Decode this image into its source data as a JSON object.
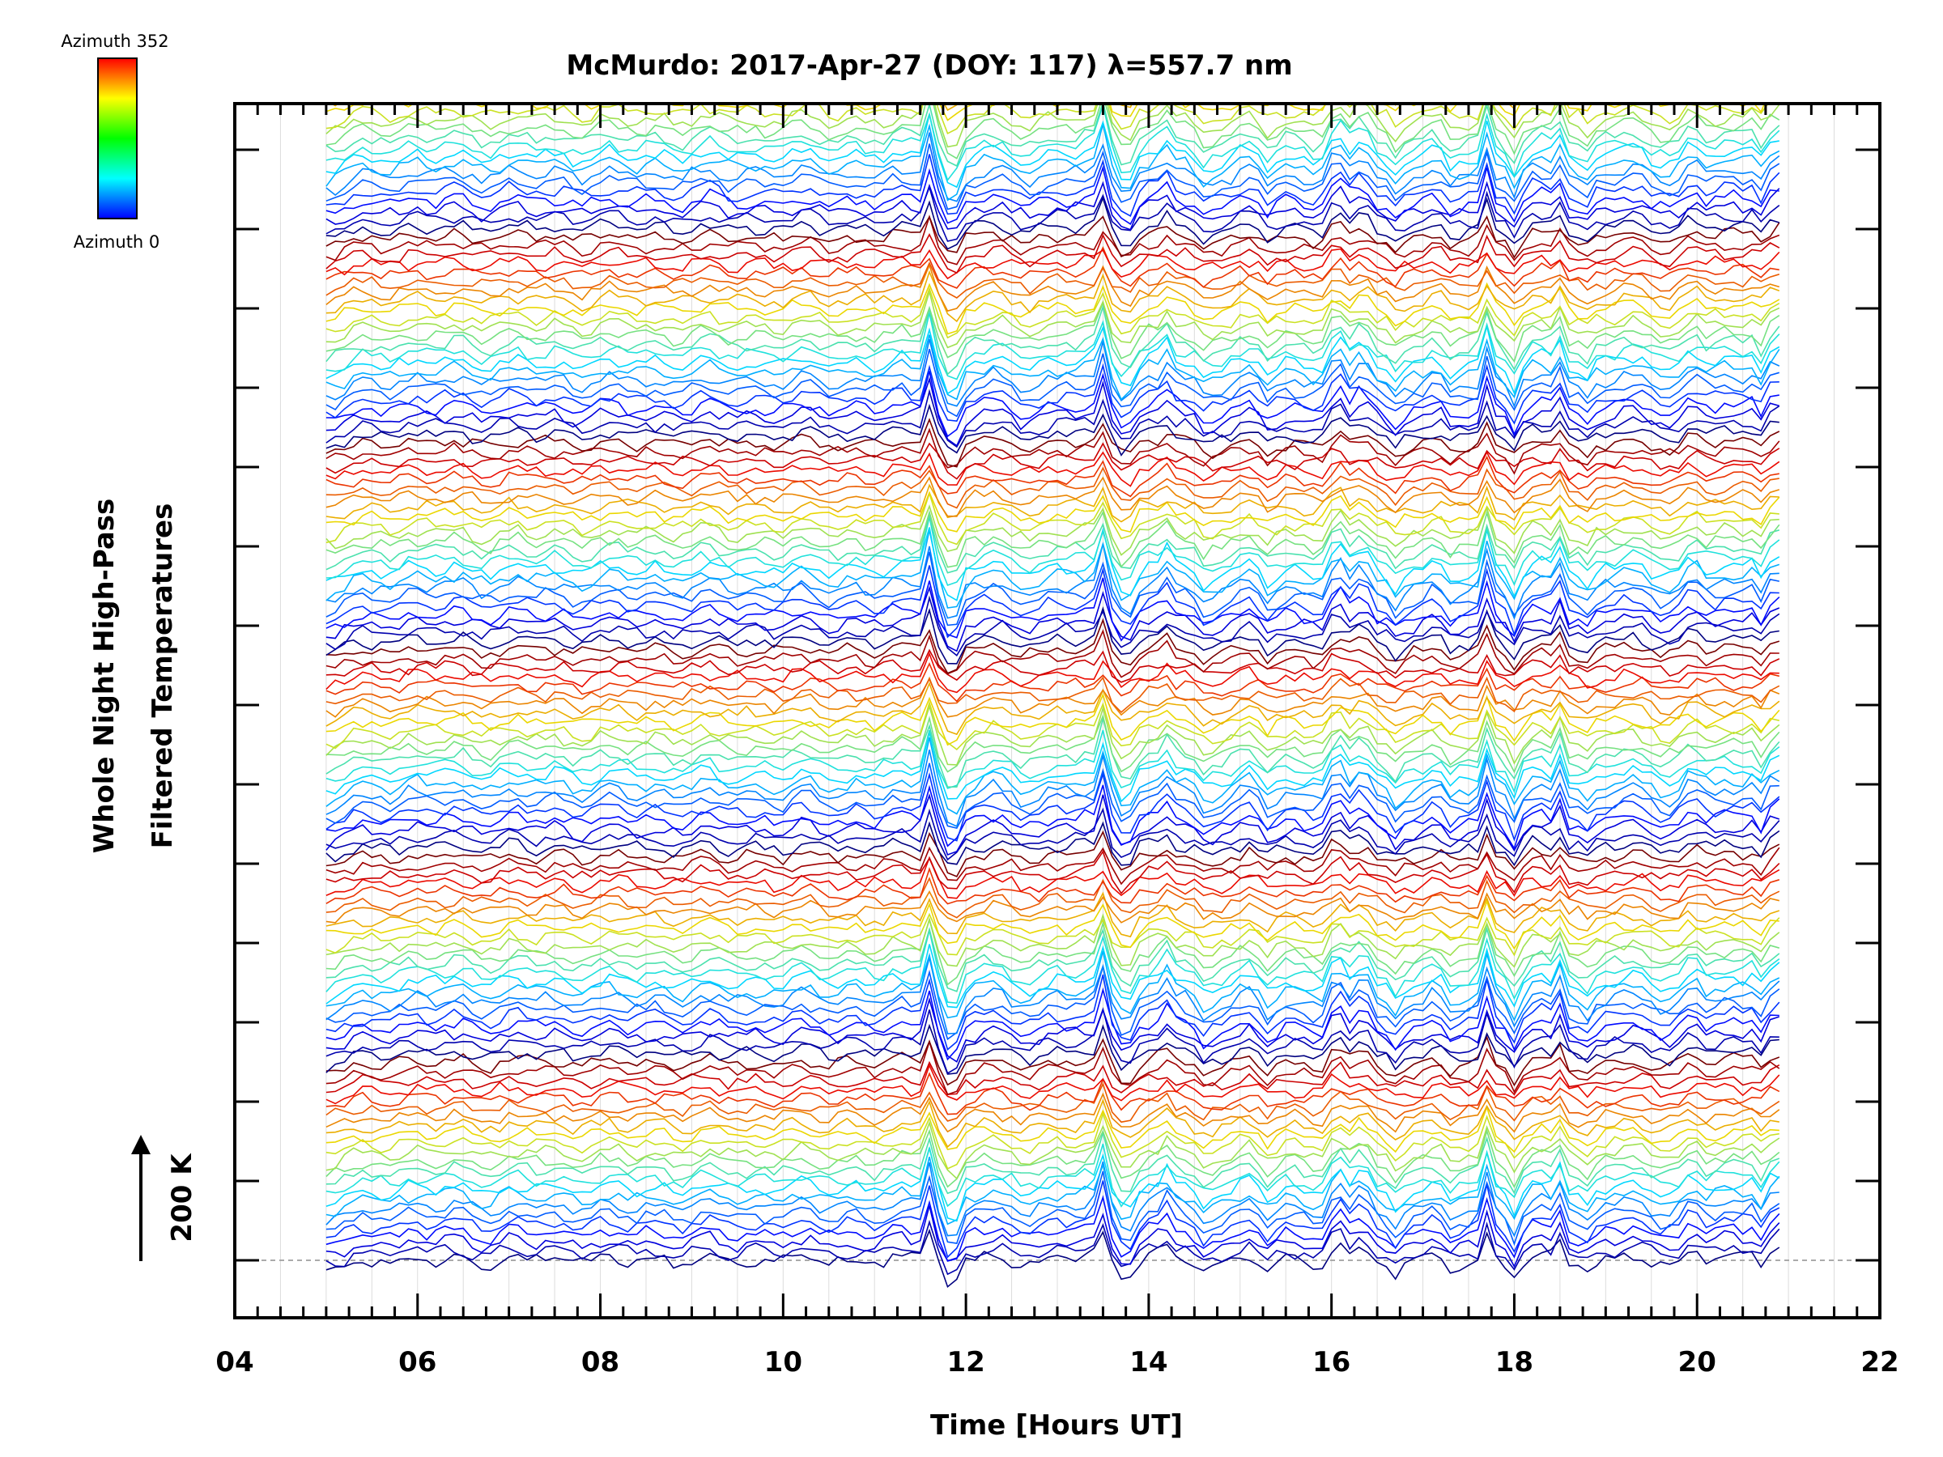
{
  "chart_data": {
    "type": "line",
    "title": "McMurdo: 2017-Apr-27 (DOY: 117) λ=557.7 nm",
    "xlabel": "Time [Hours UT]",
    "ylabel_line1": "Whole Night High-Pass",
    "ylabel_line2": "Filtered Temperatures",
    "scale_bar_label": "200 K",
    "xlim": [
      4,
      22
    ],
    "x_ticks": [
      "04",
      "06",
      "08",
      "10",
      "12",
      "14",
      "16",
      "18",
      "20",
      "22"
    ],
    "x_minor_step": 0.5,
    "data_range_hours": [
      5.0,
      20.9
    ],
    "sample_interval_hours": 0.1,
    "n_traces": 140,
    "azimuth_steps_per_cycle": 23,
    "trace_spacing_K": 14.3,
    "colorbar": {
      "top_label": "Azimuth 352",
      "bottom_label": "Azimuth 0",
      "azimuth_range": [
        0,
        352
      ],
      "colors": [
        "#0000ff",
        "#00ffff",
        "#00ff00",
        "#ffff00",
        "#ff0000"
      ]
    },
    "grid": true,
    "events": [
      {
        "t": 11.6,
        "amp": 70,
        "w": 0.07
      },
      {
        "t": 11.85,
        "amp": -55,
        "w": 0.1
      },
      {
        "t": 13.5,
        "amp": 55,
        "w": 0.06
      },
      {
        "t": 13.75,
        "amp": -30,
        "w": 0.08
      },
      {
        "t": 14.2,
        "amp": 25,
        "w": 0.08
      },
      {
        "t": 14.6,
        "amp": -20,
        "w": 0.1
      },
      {
        "t": 15.3,
        "amp": -22,
        "w": 0.1
      },
      {
        "t": 16.05,
        "amp": 40,
        "w": 0.07
      },
      {
        "t": 16.35,
        "amp": 35,
        "w": 0.07
      },
      {
        "t": 16.7,
        "amp": -25,
        "w": 0.09
      },
      {
        "t": 17.3,
        "amp": -25,
        "w": 0.1
      },
      {
        "t": 17.7,
        "amp": 55,
        "w": 0.06
      },
      {
        "t": 18.0,
        "amp": -35,
        "w": 0.08
      },
      {
        "t": 18.5,
        "amp": 40,
        "w": 0.06
      },
      {
        "t": 18.8,
        "amp": -20,
        "w": 0.08
      },
      {
        "t": 19.95,
        "amp": 22,
        "w": 0.06
      },
      {
        "t": 20.6,
        "amp": 18,
        "w": 0.08
      },
      {
        "t": 20.85,
        "amp": 40,
        "w": 0.08
      }
    ]
  }
}
